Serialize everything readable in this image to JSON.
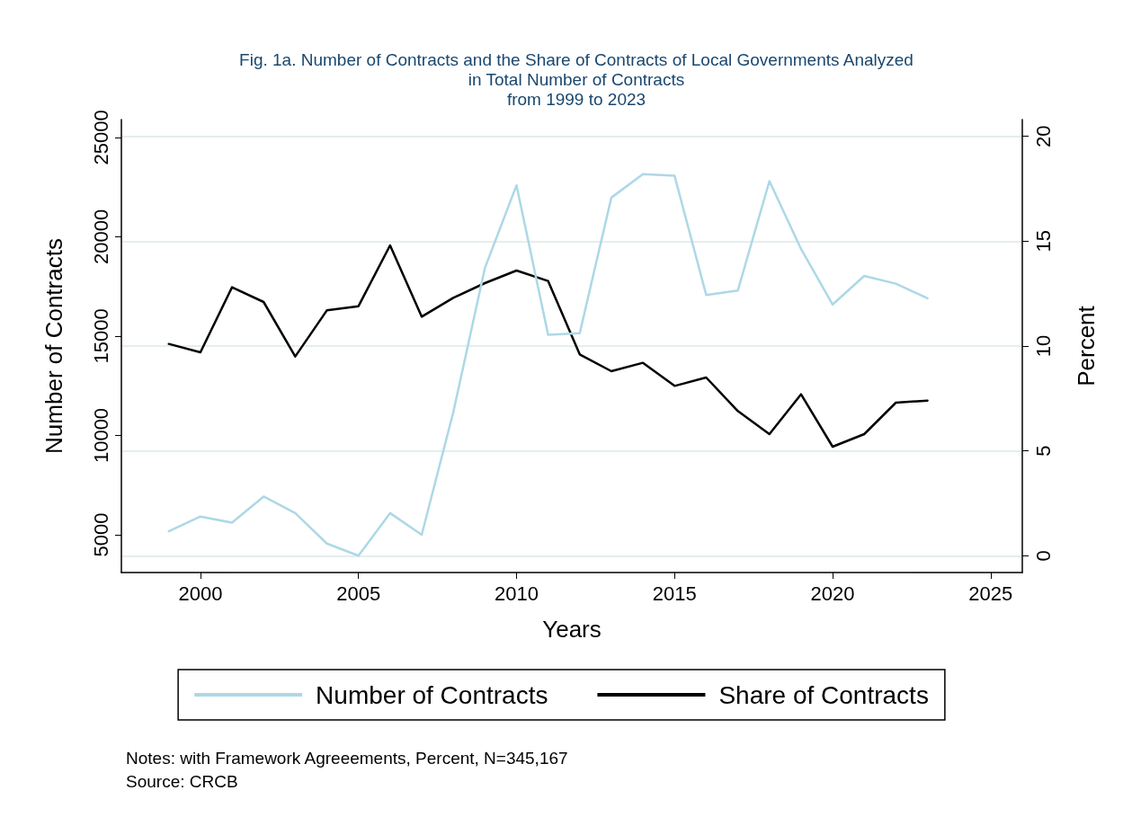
{
  "chart_data": {
    "type": "line",
    "title": "Fig. 1a. Number of Contracts and the Share of Contracts of Local Governments Analyzed\nin Total Number of Contracts\nfrom 1999 to 2023",
    "xlabel": "Years",
    "ylabel": "Number of Contracts",
    "y2label": "Percent",
    "x": [
      1999,
      2000,
      2001,
      2002,
      2003,
      2004,
      2005,
      2006,
      2007,
      2008,
      2009,
      2010,
      2011,
      2012,
      2013,
      2014,
      2015,
      2016,
      2017,
      2018,
      2019,
      2020,
      2021,
      2022,
      2023
    ],
    "series": [
      {
        "name": "Number of Contracts",
        "color": "#add8e6",
        "values": [
          5175,
          5920,
          5610,
          6925,
          6090,
          4560,
          3950,
          6090,
          5000,
          11170,
          18430,
          22590,
          15060,
          15150,
          21970,
          23150,
          23070,
          17070,
          17290,
          22800,
          19390,
          16590,
          18030,
          17640,
          16900
        ]
      },
      {
        "name": "Share of Contracts",
        "color": "#000000",
        "axis": "y2",
        "values": [
          10.1,
          9.7,
          12.8,
          12.1,
          9.5,
          11.7,
          11.9,
          14.8,
          11.4,
          12.3,
          13.0,
          13.6,
          13.1,
          9.6,
          8.8,
          9.2,
          8.1,
          8.5,
          6.9,
          5.8,
          7.7,
          5.2,
          5.8,
          7.3,
          7.4
        ]
      }
    ],
    "xlim": [
      1997.5,
      2026
    ],
    "xticks": [
      2000,
      2005,
      2010,
      2015,
      2020,
      2025
    ],
    "ylim": [
      3100,
      25900
    ],
    "yticks": [
      5000,
      10000,
      15000,
      20000,
      25000
    ],
    "y2lim": [
      -0.8,
      20.8
    ],
    "y2ticks": [
      0,
      5,
      10,
      15,
      20
    ],
    "grid": "y",
    "legend": "bottom",
    "marker": "none",
    "line_style": "solid",
    "annotations": [
      "Notes: with Framework Agreeements, Percent, N=345,167",
      "Source: CRCB"
    ]
  }
}
